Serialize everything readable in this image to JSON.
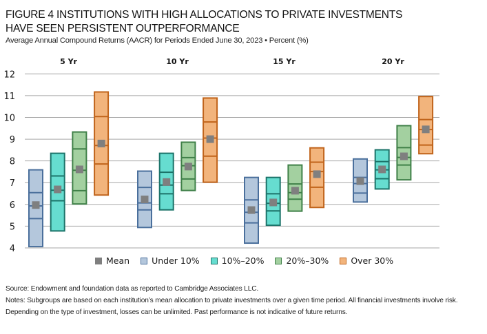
{
  "header": {
    "title_line1": "FIGURE 4  INSTITUTIONS WITH HIGH ALLOCATIONS TO PRIVATE INVESTMENTS",
    "title_line2": "HAVE SEEN PERSISTENT OUTPERFORMANCE",
    "subtitle": "Average Annual Compound Returns (AACR) for Periods Ended June 30, 2023 • Percent (%)"
  },
  "legend": [
    {
      "label": "Mean",
      "key": "mean"
    },
    {
      "label": "Under 10%",
      "key": "under10"
    },
    {
      "label": "10%–20%",
      "key": "10to20"
    },
    {
      "label": "20%–30%",
      "key": "20to30"
    },
    {
      "label": "Over 30%",
      "key": "over30"
    }
  ],
  "colors": {
    "mean": "#7f7f7f",
    "under10": {
      "fill": "#b4c7dc",
      "stroke": "#4a6f9c"
    },
    "10to20": {
      "fill": "#66ddd0",
      "stroke": "#1c7369"
    },
    "20to30": {
      "fill": "#a3d0a0",
      "stroke": "#3f8048"
    },
    "over30": {
      "fill": "#f2b47c",
      "stroke": "#c0631a"
    },
    "grid": "#a6a6a6"
  },
  "chart_data": {
    "type": "box",
    "title": "Institutions with High Allocations to Private Investments Have Seen Persistent Outperformance",
    "ylabel": "Percent (%)",
    "ylim": [
      4,
      12
    ],
    "yticks": [
      4,
      5,
      6,
      7,
      8,
      9,
      10,
      11,
      12
    ],
    "grid": true,
    "legend_position": "bottom",
    "categories": [
      "5 Yr",
      "10 Yr",
      "15 Yr",
      "20 Yr"
    ],
    "series": [
      {
        "name": "Under 10%",
        "key": "under10",
        "values": [
          {
            "top": 7.59,
            "upper": 6.54,
            "median": 5.93,
            "lower": 5.35,
            "bottom": 4.06,
            "mean": 5.97
          },
          {
            "top": 7.53,
            "upper": 6.78,
            "median": 6.07,
            "lower": 5.75,
            "bottom": 4.94,
            "mean": 6.23
          },
          {
            "top": 7.24,
            "upper": 6.21,
            "median": 5.64,
            "lower": 5.15,
            "bottom": 4.22,
            "mean": 5.74
          },
          {
            "top": 8.09,
            "upper": 7.24,
            "median": 6.96,
            "lower": 6.52,
            "bottom": 6.11,
            "mean": 7.07
          }
        ]
      },
      {
        "name": "10%–20%",
        "key": "10to20",
        "values": [
          {
            "top": 8.35,
            "upper": 7.31,
            "median": 6.65,
            "lower": 6.17,
            "bottom": 4.78,
            "mean": 6.69
          },
          {
            "top": 8.35,
            "upper": 7.48,
            "median": 6.89,
            "lower": 6.49,
            "bottom": 5.75,
            "mean": 7.03
          },
          {
            "top": 7.24,
            "upper": 6.49,
            "median": 6.05,
            "lower": 5.7,
            "bottom": 5.04,
            "mean": 6.09
          },
          {
            "top": 8.51,
            "upper": 7.97,
            "median": 7.59,
            "lower": 7.18,
            "bottom": 6.71,
            "mean": 7.61
          }
        ]
      },
      {
        "name": "20%–30%",
        "key": "20to30",
        "values": [
          {
            "top": 9.33,
            "upper": 8.55,
            "median": 7.57,
            "lower": 6.63,
            "bottom": 6.02,
            "mean": 7.61
          },
          {
            "top": 8.86,
            "upper": 8.15,
            "median": 7.78,
            "lower": 7.17,
            "bottom": 6.64,
            "mean": 7.74
          },
          {
            "top": 7.81,
            "upper": 6.94,
            "median": 6.54,
            "lower": 6.24,
            "bottom": 5.69,
            "mean": 6.63
          },
          {
            "top": 9.62,
            "upper": 8.61,
            "median": 8.16,
            "lower": 7.81,
            "bottom": 7.13,
            "mean": 8.21
          }
        ]
      },
      {
        "name": "Over 30%",
        "key": "over30",
        "values": [
          {
            "top": 11.17,
            "upper": 10.04,
            "median": 8.71,
            "lower": 7.86,
            "bottom": 6.43,
            "mean": 8.8
          },
          {
            "top": 10.89,
            "upper": 9.79,
            "median": 9.05,
            "lower": 8.22,
            "bottom": 7.02,
            "mean": 9.0
          },
          {
            "top": 8.6,
            "upper": 7.94,
            "median": 7.51,
            "lower": 6.79,
            "bottom": 5.86,
            "mean": 7.39
          },
          {
            "top": 10.96,
            "upper": 9.9,
            "median": 9.44,
            "lower": 8.73,
            "bottom": 8.33,
            "mean": 9.45
          }
        ]
      }
    ]
  },
  "footer": {
    "source": "Source: Endowment and foundation data as reported to Cambridge Associates LLC.",
    "notes": "Notes: Subgroups are based on each institution’s mean allocation to private investments over a given time period. All financial investments involve risk. Depending on the type of investment, losses can be unlimited. Past performance is not indicative of future returns."
  }
}
